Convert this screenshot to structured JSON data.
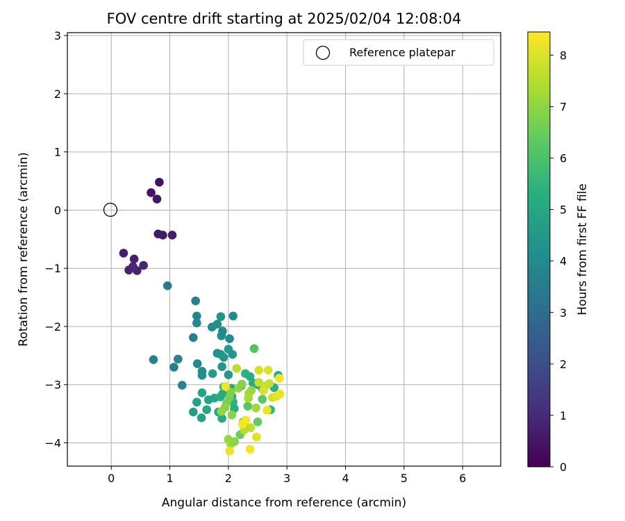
{
  "chart_data": {
    "type": "scatter",
    "title": "FOV centre drift starting at 2025/02/04 12:08:04",
    "xlabel": "Angular distance from reference (arcmin)",
    "ylabel": "Rotation from reference (arcmin)",
    "xlim": [
      -0.75,
      6.65
    ],
    "ylim": [
      -4.4,
      3.05
    ],
    "xticks": [
      "0",
      "1",
      "2",
      "3",
      "4",
      "5",
      "6"
    ],
    "yticks": [
      "−4",
      "−3",
      "−2",
      "−1",
      "0",
      "1",
      "2",
      "3"
    ],
    "grid": true,
    "legend": {
      "placement": "upper-right",
      "entries": [
        "Reference platepar"
      ]
    },
    "reference_point": {
      "x": 0,
      "y": 0,
      "label": "Reference platepar"
    },
    "colorbar": {
      "label": "Hours from first FF file",
      "colormap": "viridis",
      "range": [
        0,
        8.45
      ],
      "ticks": [
        "0",
        "1",
        "2",
        "3",
        "4",
        "5",
        "6",
        "7",
        "8"
      ]
    },
    "series": [
      {
        "points": [
          [
            0.82,
            0.48,
            0.4
          ],
          [
            0.68,
            0.3,
            0.45
          ],
          [
            0.78,
            0.19,
            0.5
          ],
          [
            0.8,
            -0.41,
            0.55
          ],
          [
            0.88,
            -0.43,
            0.6
          ],
          [
            1.04,
            -0.43,
            0.65
          ],
          [
            0.21,
            -0.74,
            0.7
          ],
          [
            0.39,
            -0.84,
            0.75
          ],
          [
            0.3,
            -1.03,
            0.8
          ],
          [
            0.44,
            -1.04,
            0.85
          ],
          [
            0.55,
            -0.95,
            0.9
          ],
          [
            0.37,
            -0.97,
            0.95
          ],
          [
            0.96,
            -1.3,
            3.5
          ],
          [
            0.72,
            -2.57,
            3.6
          ],
          [
            1.07,
            -2.7,
            3.6
          ],
          [
            1.14,
            -2.56,
            3.7
          ],
          [
            1.21,
            -3.01,
            3.8
          ],
          [
            1.4,
            -2.19,
            3.6
          ],
          [
            1.44,
            -1.56,
            3.7
          ],
          [
            1.46,
            -1.82,
            3.8
          ],
          [
            1.46,
            -1.94,
            3.9
          ],
          [
            1.47,
            -2.64,
            4.0
          ],
          [
            1.55,
            -2.77,
            4.1
          ],
          [
            1.55,
            -2.84,
            4.2
          ],
          [
            1.72,
            -2.01,
            4.0
          ],
          [
            1.81,
            -1.96,
            4.2
          ],
          [
            1.87,
            -1.83,
            4.3
          ],
          [
            1.88,
            -2.16,
            4.1
          ],
          [
            1.9,
            -2.08,
            4.0
          ],
          [
            2.02,
            -2.21,
            4.2
          ],
          [
            2.08,
            -1.82,
            4.1
          ],
          [
            1.81,
            -2.46,
            4.2
          ],
          [
            1.87,
            -2.48,
            4.3
          ],
          [
            1.89,
            -2.69,
            4.4
          ],
          [
            1.92,
            -2.53,
            4.4
          ],
          [
            2.0,
            -2.39,
            4.5
          ],
          [
            2.07,
            -2.48,
            4.4
          ],
          [
            1.73,
            -2.81,
            4.6
          ],
          [
            2.0,
            -2.83,
            4.6
          ],
          [
            1.4,
            -3.47,
            4.7
          ],
          [
            1.46,
            -3.3,
            4.8
          ],
          [
            1.54,
            -3.57,
            4.8
          ],
          [
            1.55,
            -3.14,
            4.9
          ],
          [
            1.63,
            -3.43,
            5.0
          ],
          [
            1.66,
            -3.26,
            4.9
          ],
          [
            1.76,
            -3.23,
            5.0
          ],
          [
            1.86,
            -3.21,
            5.2
          ],
          [
            1.9,
            -3.16,
            5.1
          ],
          [
            1.92,
            -3.04,
            5.3
          ],
          [
            2.05,
            -3.06,
            5.2
          ],
          [
            2.06,
            -3.2,
            5.2
          ],
          [
            2.08,
            -3.3,
            5.4
          ],
          [
            2.1,
            -3.41,
            5.3
          ],
          [
            1.83,
            -3.47,
            5.0
          ],
          [
            1.89,
            -3.58,
            5.1
          ],
          [
            2.22,
            -3.02,
            5.3
          ],
          [
            2.29,
            -2.81,
            5.4
          ],
          [
            2.37,
            -2.86,
            5.3
          ],
          [
            2.42,
            -2.97,
            5.2
          ],
          [
            2.5,
            -3.0,
            5.4
          ],
          [
            2.58,
            -3.07,
            5.5
          ],
          [
            2.72,
            -3.43,
            5.5
          ],
          [
            2.78,
            -3.05,
            5.3
          ],
          [
            2.85,
            -2.84,
            5.2
          ],
          [
            2.44,
            -2.38,
            6.1
          ],
          [
            2.33,
            -3.37,
            6.2
          ],
          [
            2.58,
            -3.25,
            6.3
          ],
          [
            2.5,
            -3.64,
            6.4
          ],
          [
            2.1,
            -3.98,
            6.4
          ],
          [
            2.2,
            -3.86,
            6.5
          ],
          [
            2.3,
            -3.73,
            6.6
          ],
          [
            2.25,
            -3.64,
            6.8
          ],
          [
            2.02,
            -3.22,
            6.6
          ],
          [
            2.04,
            -3.13,
            6.8
          ],
          [
            1.97,
            -3.31,
            6.7
          ],
          [
            1.94,
            -3.39,
            6.9
          ],
          [
            2.06,
            -3.52,
            6.9
          ],
          [
            1.88,
            -3.46,
            7.0
          ],
          [
            2.17,
            -3.06,
            7.0
          ],
          [
            2.23,
            -2.99,
            6.9
          ],
          [
            2.39,
            -3.1,
            7.1
          ],
          [
            2.47,
            -3.4,
            7.2
          ],
          [
            2.35,
            -3.15,
            7.2
          ],
          [
            2.34,
            -3.23,
            7.3
          ],
          [
            2.0,
            -3.94,
            7.1
          ],
          [
            2.04,
            -4.02,
            7.3
          ],
          [
            2.08,
            -3.99,
            7.0
          ],
          [
            2.25,
            -3.66,
            7.4
          ],
          [
            2.38,
            -3.74,
            7.6
          ],
          [
            2.27,
            -3.78,
            7.5
          ],
          [
            2.14,
            -2.72,
            7.6
          ],
          [
            2.52,
            -2.96,
            7.7
          ],
          [
            2.63,
            -3.02,
            7.8
          ],
          [
            2.52,
            -2.75,
            7.9
          ],
          [
            2.68,
            -2.75,
            8.0
          ],
          [
            2.7,
            -2.98,
            7.7
          ],
          [
            2.75,
            -3.22,
            7.9
          ],
          [
            2.82,
            -3.2,
            8.1
          ],
          [
            2.88,
            -3.16,
            8.2
          ],
          [
            2.87,
            -2.89,
            8.3
          ],
          [
            2.66,
            -3.44,
            8.2
          ],
          [
            2.48,
            -3.9,
            8.1
          ],
          [
            2.37,
            -4.11,
            8.3
          ],
          [
            2.02,
            -4.14,
            8.2
          ],
          [
            1.95,
            -3.03,
            8.3
          ],
          [
            2.3,
            -3.61,
            8.4
          ],
          [
            2.24,
            -3.68,
            8.4
          ],
          [
            2.6,
            -3.1,
            8.0
          ]
        ]
      }
    ]
  }
}
